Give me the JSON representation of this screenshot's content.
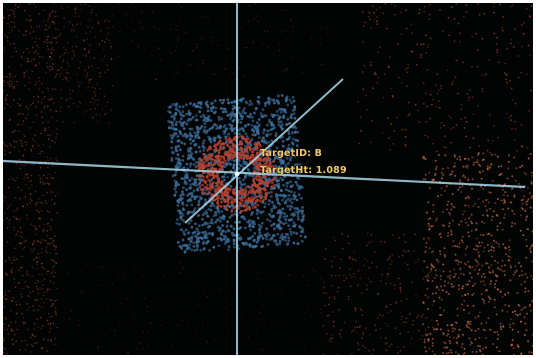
{
  "viewer": {
    "background_color": "#020303",
    "point_colors": {
      "terrain": "#c8563a",
      "terrain_bright": "#e07848",
      "target_panel": "#3b6f9c",
      "target_ring": "#b8412f"
    },
    "crosshair_color": "#a8d8ea",
    "label_color": "#f2c96a"
  },
  "target": {
    "id_text": "TargetID: B",
    "height_text": "TargetHt: 1.089"
  }
}
